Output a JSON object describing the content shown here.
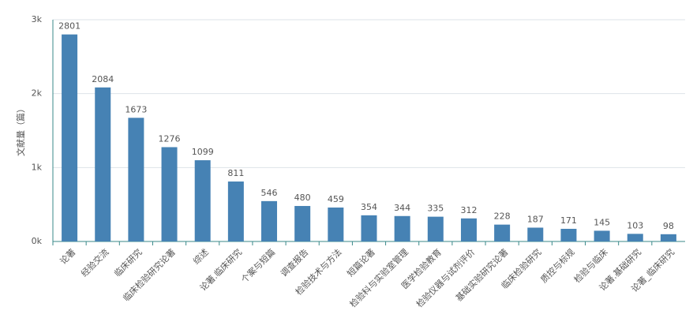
{
  "chart_data": {
    "type": "bar",
    "y_label": "文献量（篇）",
    "categories": [
      "论著",
      "经验交流",
      "临床研究",
      "临床检验研究论著",
      "综述",
      "论著.临床研究",
      "个案与短篇",
      "调查报告",
      "检验技术与方法",
      "短篇论著",
      "检验科与实验室管理",
      "医学检验教育",
      "检验仪器与试剂评价",
      "基础实验研究论著",
      "临床检验研究",
      "质控与标规",
      "检验与临床",
      "论著.基础研究",
      "论著_临床研究"
    ],
    "values": [
      2801,
      2084,
      1673,
      1276,
      1099,
      811,
      546,
      480,
      459,
      354,
      344,
      335,
      312,
      228,
      187,
      171,
      145,
      103,
      98
    ],
    "color": "#4682b4",
    "ylim": [
      0,
      3000
    ],
    "yticks": [
      {
        "value": 0,
        "label": "0k"
      },
      {
        "value": 1000,
        "label": "1k"
      },
      {
        "value": 2000,
        "label": "2k"
      },
      {
        "value": 3000,
        "label": "3k"
      }
    ],
    "grid": true
  }
}
